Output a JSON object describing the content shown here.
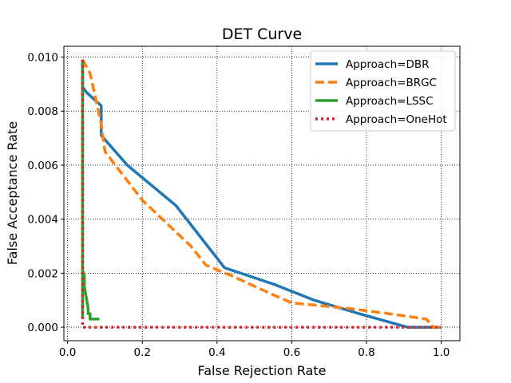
{
  "chart_data": {
    "type": "line",
    "title": "DET Curve",
    "xlabel": "False  Rejection  Rate",
    "ylabel": "False  Acceptance  Rate",
    "xlim": [
      -0.01,
      1.05
    ],
    "ylim": [
      -0.0005,
      0.0104
    ],
    "xticks": [
      0.0,
      0.2,
      0.4,
      0.6,
      0.8,
      1.0
    ],
    "xtick_labels": [
      "0.0",
      "0.2",
      "0.4",
      "0.6",
      "0.8",
      "1.0"
    ],
    "yticks": [
      0.0,
      0.002,
      0.004,
      0.006,
      0.008,
      0.01
    ],
    "ytick_labels": [
      "0.000",
      "0.002",
      "0.004",
      "0.006",
      "0.008",
      "0.010"
    ],
    "grid": true,
    "grid_style": "dotted",
    "legend_position": "top-right",
    "series": [
      {
        "name": "Approach=DBR",
        "color": "#1f77b4",
        "style": "solid",
        "x": [
          0.04,
          0.04,
          0.05,
          0.09,
          0.09,
          0.16,
          0.29,
          0.42,
          0.55,
          0.66,
          0.78,
          0.91,
          1.0
        ],
        "y": [
          0.0099,
          0.0089,
          0.0087,
          0.0082,
          0.0071,
          0.006,
          0.0045,
          0.0022,
          0.0016,
          0.001,
          0.0005,
          0.0,
          0.0
        ]
      },
      {
        "name": "Approach=BRGC",
        "color": "#ff7f0e",
        "style": "dashed",
        "x": [
          0.04,
          0.06,
          0.07,
          0.09,
          0.1,
          0.2,
          0.33,
          0.37,
          0.44,
          0.55,
          0.6,
          0.75,
          0.86,
          0.96,
          0.98,
          1.0
        ],
        "y": [
          0.0099,
          0.0094,
          0.0088,
          0.0075,
          0.0065,
          0.0047,
          0.003,
          0.0023,
          0.0019,
          0.0012,
          0.0009,
          0.0007,
          0.0005,
          0.0003,
          0.0,
          0.0
        ]
      },
      {
        "name": "Approach=LSSC",
        "color": "#2ca02c",
        "style": "solid",
        "x": [
          0.04,
          0.04,
          0.04,
          0.045,
          0.045,
          0.055,
          0.055,
          0.06,
          0.06,
          0.085
        ],
        "y": [
          0.0099,
          0.0004,
          0.0021,
          0.0019,
          0.0015,
          0.0007,
          0.0005,
          0.0005,
          0.0003,
          0.0003
        ]
      },
      {
        "name": "Approach=OneHot",
        "color": "#d62728",
        "style": "dotted",
        "x": [
          0.04,
          0.04,
          0.1,
          0.3,
          0.6,
          0.85,
          1.0
        ],
        "y": [
          0.0099,
          0.0,
          0.0,
          0.0,
          0.0,
          0.0,
          0.0
        ]
      }
    ]
  }
}
